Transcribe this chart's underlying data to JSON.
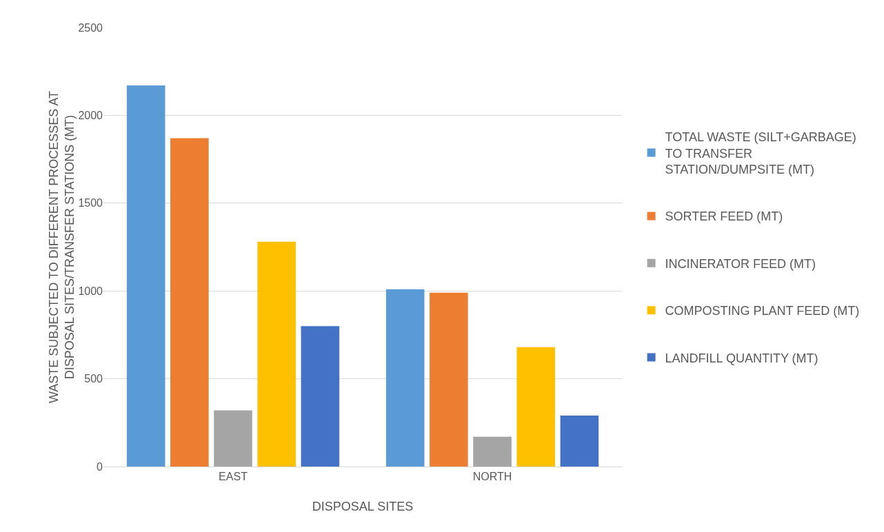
{
  "chart_data": {
    "type": "bar",
    "xlabel": "DISPOSAL SITES",
    "ylabel": "WASTE SUBJECTED TO DIFFERENT PROCESSES AT DISPOSAL SITES/TRANSFER STATIONS (MT)",
    "categories": [
      "EAST",
      "NORTH"
    ],
    "series": [
      {
        "name": "TOTAL WASTE (SILT+GARBAGE) TO TRANSFER STATION/DUMPSITE (MT)",
        "color": "#5b9bd5",
        "values": [
          2170,
          1010
        ]
      },
      {
        "name": "SORTER FEED (MT)",
        "color": "#ed7d31",
        "values": [
          1870,
          990
        ]
      },
      {
        "name": "INCINERATOR FEED (MT)",
        "color": "#a5a5a5",
        "values": [
          320,
          170
        ]
      },
      {
        "name": "COMPOSTING PLANT FEED (MT)",
        "color": "#ffc000",
        "values": [
          1280,
          680
        ]
      },
      {
        "name": "LANDFILL QUANTITY (MT)",
        "color": "#4472c4",
        "values": [
          800,
          290
        ]
      }
    ],
    "ylim": [
      0,
      2500
    ],
    "yticks": [
      0,
      500,
      1000,
      1500,
      2000,
      2500
    ],
    "grid": "y",
    "legend": "right"
  }
}
